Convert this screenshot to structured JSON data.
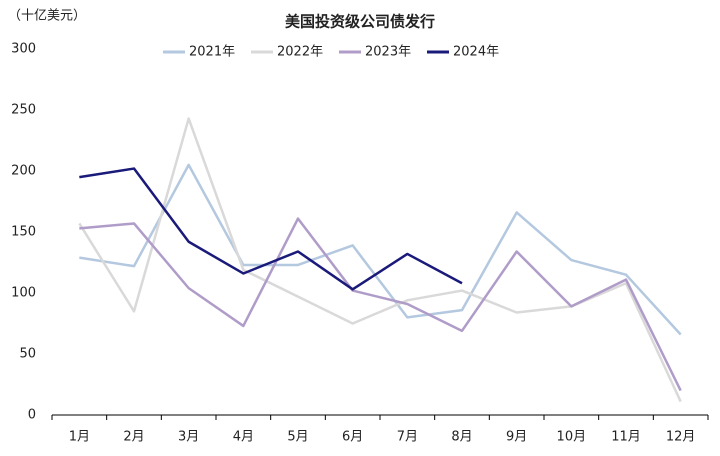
{
  "chart_data": {
    "type": "line",
    "title": "美国投资级公司债发行",
    "y_label": "（十亿美元）",
    "categories": [
      "1月",
      "2月",
      "3月",
      "4月",
      "5月",
      "6月",
      "7月",
      "8月",
      "9月",
      "10月",
      "11月",
      "12月"
    ],
    "series": [
      {
        "name": "2021年",
        "color": "#b4c8e0",
        "values": [
          129,
          122,
          205,
          123,
          123,
          139,
          80,
          86,
          166,
          127,
          115,
          66
        ]
      },
      {
        "name": "2022年",
        "color": "#d9d9d9",
        "values": [
          157,
          85,
          243,
          119,
          97,
          75,
          94,
          102,
          84,
          89,
          108,
          11
        ]
      },
      {
        "name": "2023年",
        "color": "#b09cc8",
        "values": [
          153,
          157,
          104,
          73,
          161,
          102,
          91,
          69,
          134,
          89,
          111,
          20
        ]
      },
      {
        "name": "2024年",
        "color": "#1a1a7a",
        "values": [
          195,
          202,
          142,
          116,
          134,
          103,
          132,
          108,
          null,
          null,
          null,
          null
        ]
      }
    ],
    "ylim": [
      0,
      300
    ],
    "yticks": [
      0,
      50,
      100,
      150,
      200,
      250,
      300
    ],
    "grid": false,
    "legend": "top"
  }
}
